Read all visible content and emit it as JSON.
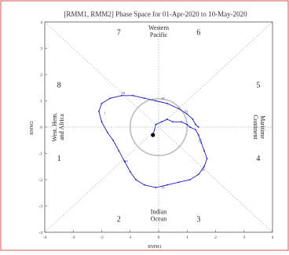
{
  "page": {
    "border_color": "#d9534f"
  },
  "chart_data": {
    "type": "line",
    "title": "[RMM1, RMM2] Phase Space for 01-Apr-2020 to 10-May-2020",
    "xlabel": "RMM1",
    "ylabel": "RMM2",
    "xlim": [
      -4,
      4
    ],
    "ylim": [
      -4,
      4
    ],
    "x_ticks": [
      "-4",
      "-3",
      "-2",
      "-1",
      "0",
      "1",
      "2",
      "3",
      "4"
    ],
    "y_ticks": [
      "-4",
      "-3",
      "-2",
      "-1",
      "0",
      "1",
      "2",
      "3",
      "4"
    ],
    "unit_circle_radius": 1,
    "phases": [
      {
        "label": "1",
        "x": -3.5,
        "y": -1.2
      },
      {
        "label": "2",
        "x": -1.4,
        "y": -3.5
      },
      {
        "label": "3",
        "x": 1.4,
        "y": -3.5
      },
      {
        "label": "4",
        "x": 3.5,
        "y": -1.2
      },
      {
        "label": "5",
        "x": 3.5,
        "y": 1.6
      },
      {
        "label": "6",
        "x": 1.4,
        "y": 3.6
      },
      {
        "label": "7",
        "x": -1.4,
        "y": 3.6
      },
      {
        "label": "8",
        "x": -3.5,
        "y": 1.6
      }
    ],
    "regions": [
      {
        "lines": [
          "Western",
          "Pacific"
        ],
        "x": 0,
        "y": 3.65,
        "rotate": 0
      },
      {
        "lines": [
          "Indian",
          "Ocean"
        ],
        "x": 0,
        "y": -3.35,
        "rotate": 0
      },
      {
        "lines": [
          "West. Hem.",
          "and Africa"
        ],
        "x": -3.55,
        "y": 0,
        "rotate": -90
      },
      {
        "lines": [
          "Maritime",
          "Continent"
        ],
        "x": 3.55,
        "y": 0,
        "rotate": 90
      }
    ],
    "series": [
      {
        "color": "#1c1cb8",
        "start": {
          "x": -0.2,
          "y": -0.3
        },
        "points": [
          [
            -0.2,
            -0.3
          ],
          [
            -0.1,
            0.1
          ],
          [
            0.1,
            0.2
          ],
          [
            0.3,
            0.3
          ],
          [
            0.5,
            0.2
          ],
          [
            0.8,
            0.2
          ],
          [
            1.0,
            0.1
          ],
          [
            1.1,
            0.0
          ],
          [
            1.3,
            -0.1
          ],
          [
            1.4,
            -0.3
          ],
          [
            1.5,
            -0.6
          ],
          [
            1.6,
            -0.9
          ],
          [
            1.7,
            -1.2
          ],
          [
            1.6,
            -1.5
          ],
          [
            1.4,
            -1.8
          ],
          [
            1.1,
            -2.0
          ],
          [
            0.7,
            -2.1
          ],
          [
            0.3,
            -2.2
          ],
          [
            -0.1,
            -2.3
          ],
          [
            -0.5,
            -2.2
          ],
          [
            -0.8,
            -2.0
          ],
          [
            -1.0,
            -1.7
          ],
          [
            -1.2,
            -1.3
          ],
          [
            -1.4,
            -0.9
          ],
          [
            -1.6,
            -0.5
          ],
          [
            -1.8,
            -0.2
          ],
          [
            -2.0,
            0.2
          ],
          [
            -2.1,
            0.6
          ],
          [
            -2.0,
            0.9
          ],
          [
            -1.7,
            1.1
          ],
          [
            -1.3,
            1.2
          ],
          [
            -0.9,
            1.2
          ],
          [
            -0.5,
            1.1
          ],
          [
            -0.1,
            1.0
          ],
          [
            0.3,
            0.9
          ],
          [
            0.7,
            0.7
          ],
          [
            1.0,
            0.5
          ],
          [
            1.2,
            0.3
          ],
          [
            1.3,
            0.1
          ],
          [
            1.4,
            0.0
          ]
        ],
        "labels": [
          {
            "text": "1",
            "x": -1.9,
            "y": 0.5
          },
          {
            "text": "10",
            "x": -1.25,
            "y": 1.25
          },
          {
            "text": "15",
            "x": 0.15,
            "y": 1.05
          },
          {
            "text": "20",
            "x": 0.95,
            "y": 0.55
          },
          {
            "text": "25",
            "x": 1.45,
            "y": -0.55
          },
          {
            "text": "30",
            "x": 1.55,
            "y": -1.65
          },
          {
            "text": "35",
            "x": 0.15,
            "y": -2.35
          },
          {
            "text": "40",
            "x": -1.15,
            "y": -1.35
          }
        ]
      }
    ],
    "grid": false,
    "diagonals": true,
    "annotation_color": "#2b2b9c"
  }
}
